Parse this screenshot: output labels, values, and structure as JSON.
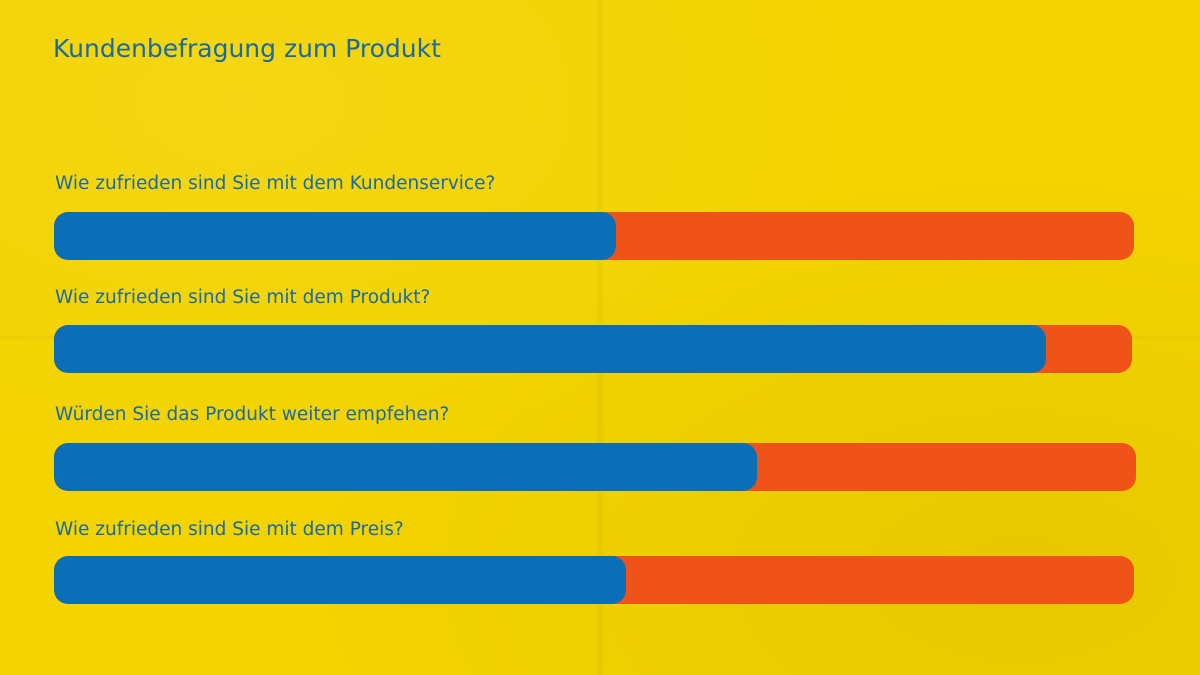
{
  "colors": {
    "background": "#f3d300",
    "text": "#1a6aa0",
    "positive": "#0a6fb6",
    "negative": "#f05318"
  },
  "chart_data": {
    "type": "bar",
    "orientation": "horizontal",
    "stacked": true,
    "title": "Kundenbefragung zum Produkt",
    "categories": [
      "Wie zufrieden sind Sie mit dem Kundenservice?",
      "Wie zufrieden sind Sie mit dem Produkt?",
      "Würden Sie das Produkt weiter empfehen?",
      "Wie zufrieden sind Sie mit dem Preis?"
    ],
    "values": [
      52,
      92,
      65,
      53
    ],
    "xlim": [
      0,
      100
    ],
    "grid": false,
    "legend": "none"
  }
}
